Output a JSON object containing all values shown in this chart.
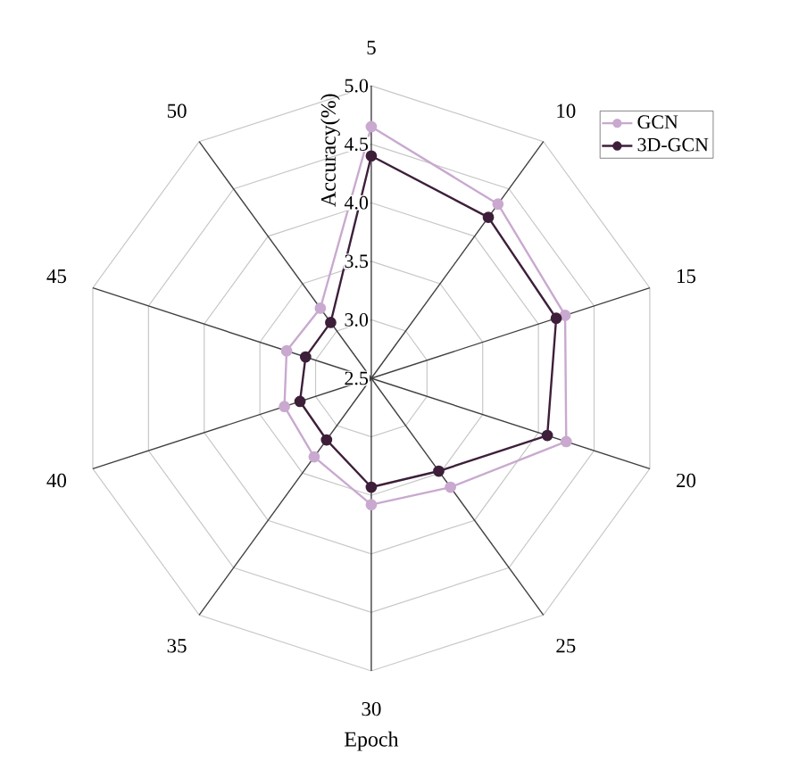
{
  "chart_data": {
    "type": "radar",
    "xlabel": "Epoch",
    "ylabel": "Accuracy(%)",
    "categories": [
      "5",
      "10",
      "15",
      "20",
      "25",
      "30",
      "35",
      "40",
      "45",
      "50"
    ],
    "ylim": [
      2.5,
      5.0
    ],
    "yticks": [
      {
        "value": 2.5,
        "label": "2.5"
      },
      {
        "value": 3.0,
        "label": "3.0"
      },
      {
        "value": 3.5,
        "label": "3.5"
      },
      {
        "value": 4.0,
        "label": "4.0"
      },
      {
        "value": 4.5,
        "label": "4.5"
      },
      {
        "value": 5.0,
        "label": "5.0"
      }
    ],
    "grid": true,
    "legend": "top right",
    "marker": "circle",
    "line_style": "solid",
    "series": [
      {
        "name": "GCN",
        "color": "#c9a9cf",
        "values": [
          4.65,
          4.34,
          4.24,
          4.25,
          3.65,
          3.58,
          3.33,
          3.28,
          3.26,
          3.24
        ]
      },
      {
        "name": "3D-GCN",
        "color": "#3d1f3a",
        "values": [
          4.4,
          4.2,
          4.16,
          4.08,
          3.48,
          3.43,
          3.15,
          3.14,
          3.09,
          3.09
        ]
      }
    ]
  }
}
